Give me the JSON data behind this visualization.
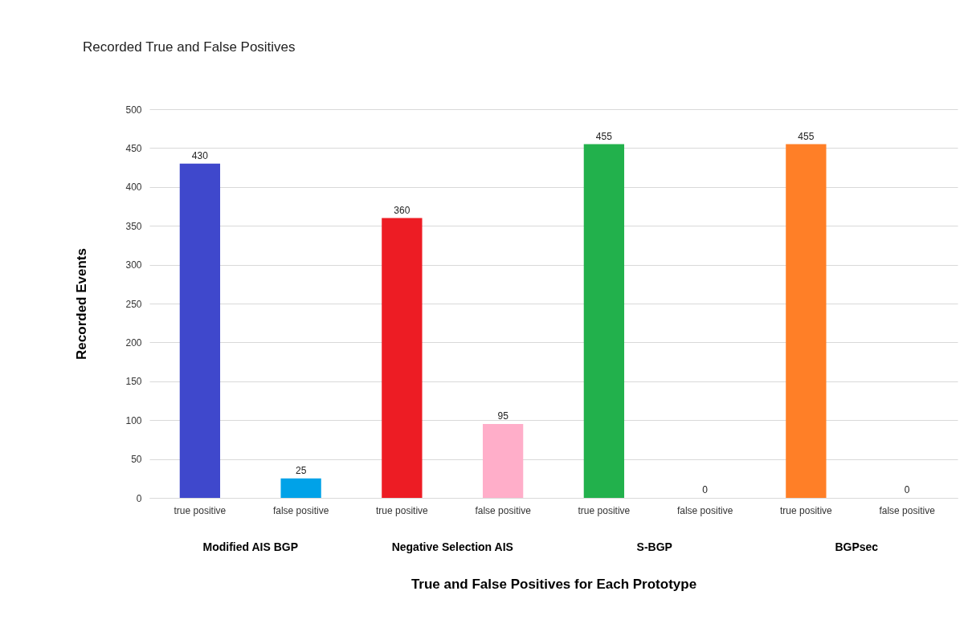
{
  "chart_data": {
    "type": "bar",
    "title": "Recorded True and False Positives",
    "xlabel": "True and False Positives for Each Prototype",
    "ylabel": "Recorded Events",
    "categories": [
      "true positive",
      "false positive",
      "true positive",
      "false positive",
      "true positive",
      "false positive",
      "true positive",
      "false positive"
    ],
    "values": [
      430,
      25,
      360,
      95,
      455,
      0,
      455,
      0
    ],
    "colors": [
      "#3f48cc",
      "#00a2e8",
      "#ed1c24",
      "#ffaec9",
      "#22b14c",
      "#a0e0b0",
      "#ff7f27",
      "#ffc090"
    ],
    "ylim": [
      0,
      500
    ],
    "yticks": [
      0,
      50,
      100,
      150,
      200,
      250,
      300,
      350,
      400,
      450,
      500
    ],
    "grid": "y",
    "data_labels": true,
    "legend": false,
    "annotations": [
      "Modified AIS BGP",
      "Negative Selection AIS",
      "S-BGP",
      "BGPsec"
    ]
  }
}
